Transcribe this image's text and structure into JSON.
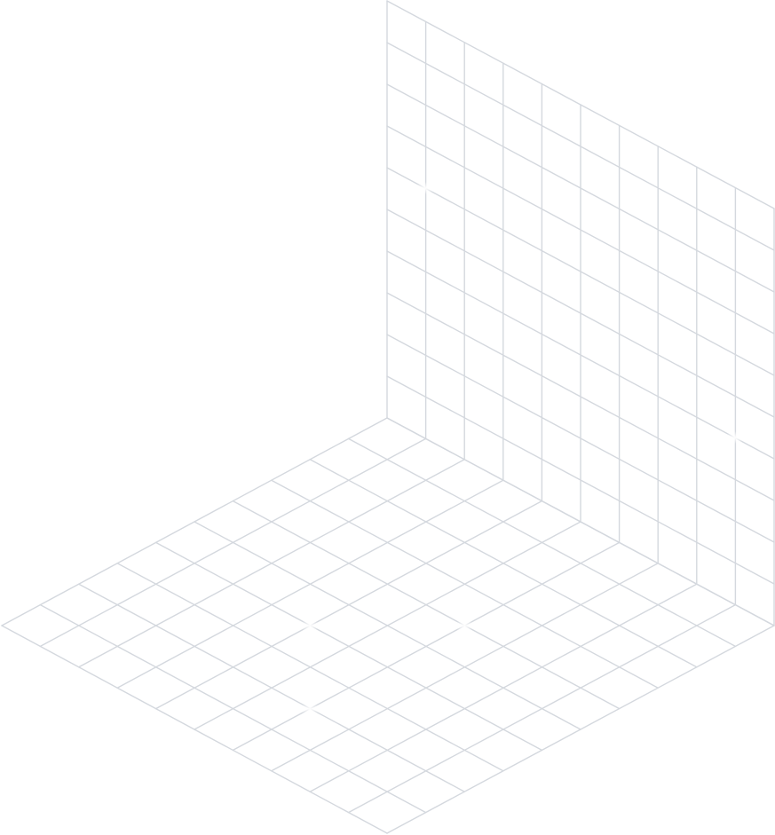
{
  "colors": {
    "background": "#ffffff",
    "grid_line": "#d4d8de",
    "sparkle": "#ffffff"
  },
  "floor_grid": {
    "cells_per_side": 10
  },
  "wall_grid": {
    "columns": 10,
    "rows": 10
  }
}
